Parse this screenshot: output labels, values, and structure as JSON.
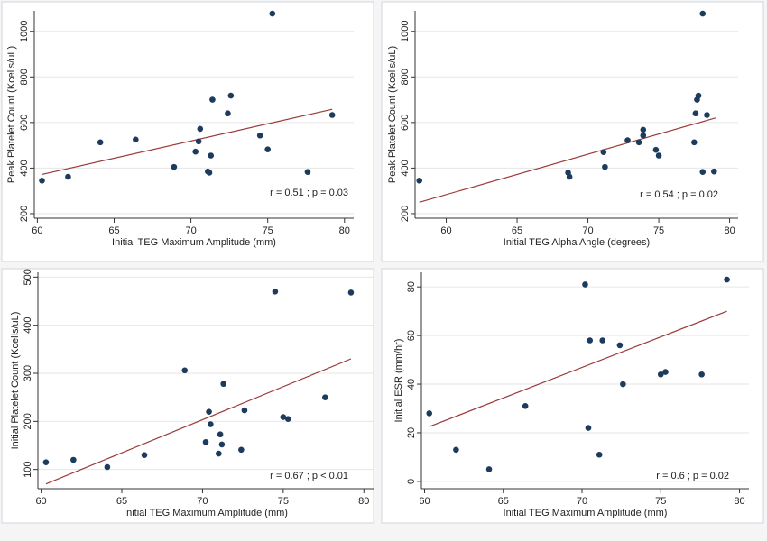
{
  "chart_data": [
    {
      "type": "scatter",
      "xlabel": "Initial TEG Maximum Amplitude (mm)",
      "ylabel": "Peak Platelet Count (Kcells/uL)",
      "xlim": [
        59.8,
        80.6
      ],
      "ylim": [
        180,
        1090
      ],
      "xticks": [
        60,
        65,
        70,
        75,
        80
      ],
      "yticks": [
        200,
        400,
        600,
        800,
        1000
      ],
      "annotation": "r = 0.51 ; p = 0.03",
      "fit": [
        [
          60.3,
          372
        ],
        [
          79.2,
          658
        ]
      ],
      "points": [
        [
          60.3,
          345
        ],
        [
          62.0,
          362
        ],
        [
          64.1,
          513
        ],
        [
          66.4,
          525
        ],
        [
          68.9,
          405
        ],
        [
          70.3,
          472
        ],
        [
          70.5,
          517
        ],
        [
          70.6,
          572
        ],
        [
          71.1,
          385
        ],
        [
          71.2,
          380
        ],
        [
          71.3,
          455
        ],
        [
          71.4,
          700
        ],
        [
          72.4,
          640
        ],
        [
          72.6,
          718
        ],
        [
          74.5,
          543
        ],
        [
          75.0,
          482
        ],
        [
          75.3,
          1078
        ],
        [
          77.6,
          383
        ],
        [
          79.2,
          633
        ]
      ]
    },
    {
      "type": "scatter",
      "xlabel": "Initial TEG Alpha Angle (degrees)",
      "ylabel": "Peak Platelet Count (Kcells/uL)",
      "xlim": [
        57.8,
        80.6
      ],
      "ylim": [
        180,
        1090
      ],
      "xticks": [
        60,
        65,
        70,
        75,
        80
      ],
      "yticks": [
        200,
        400,
        600,
        800,
        1000
      ],
      "annotation": "r = 0.54 ; p = 0.02",
      "fit": [
        [
          58.1,
          250
        ],
        [
          79.0,
          620
        ]
      ],
      "points": [
        [
          58.1,
          345
        ],
        [
          68.6,
          380
        ],
        [
          68.7,
          362
        ],
        [
          71.1,
          470
        ],
        [
          71.2,
          405
        ],
        [
          72.8,
          522
        ],
        [
          73.6,
          513
        ],
        [
          73.9,
          568
        ],
        [
          73.9,
          543
        ],
        [
          74.8,
          480
        ],
        [
          75.0,
          455
        ],
        [
          77.5,
          513
        ],
        [
          77.6,
          640
        ],
        [
          77.7,
          700
        ],
        [
          77.8,
          718
        ],
        [
          78.1,
          1078
        ],
        [
          78.1,
          383
        ],
        [
          78.4,
          633
        ],
        [
          78.9,
          385
        ]
      ]
    },
    {
      "type": "scatter",
      "xlabel": "Initial TEG Maximum Amplitude (mm)",
      "ylabel": "Initial Platelet Count (Kcells/uL)",
      "xlim": [
        59.8,
        80.6
      ],
      "ylim": [
        60,
        510
      ],
      "xticks": [
        60,
        65,
        70,
        75,
        80
      ],
      "yticks": [
        100,
        200,
        300,
        400,
        500
      ],
      "annotation": "r = 0.67 ; p < 0.01",
      "fit": [
        [
          60.3,
          70
        ],
        [
          79.2,
          330
        ]
      ],
      "points": [
        [
          60.3,
          115
        ],
        [
          62.0,
          120
        ],
        [
          64.1,
          105
        ],
        [
          66.4,
          130
        ],
        [
          68.9,
          306
        ],
        [
          70.2,
          157
        ],
        [
          70.4,
          220
        ],
        [
          70.5,
          194
        ],
        [
          71.0,
          133
        ],
        [
          71.1,
          173
        ],
        [
          71.2,
          152
        ],
        [
          71.3,
          278
        ],
        [
          72.4,
          141
        ],
        [
          72.6,
          223
        ],
        [
          74.5,
          470
        ],
        [
          75.0,
          209
        ],
        [
          75.3,
          205
        ],
        [
          77.6,
          250
        ],
        [
          79.2,
          468
        ]
      ]
    },
    {
      "type": "scatter",
      "xlabel": "Initial TEG Maximum Amplitude (mm)",
      "ylabel": "Initial ESR (mm/hr)",
      "xlim": [
        59.8,
        80.6
      ],
      "ylim": [
        -3,
        86
      ],
      "xticks": [
        60,
        65,
        70,
        75,
        80
      ],
      "yticks": [
        0,
        20,
        40,
        60,
        80
      ],
      "annotation": "r = 0.6 ; p = 0.02",
      "fit": [
        [
          60.3,
          22.5
        ],
        [
          79.2,
          70
        ]
      ],
      "points": [
        [
          60.3,
          28
        ],
        [
          62.0,
          13
        ],
        [
          64.1,
          5
        ],
        [
          66.4,
          31
        ],
        [
          70.2,
          81
        ],
        [
          70.4,
          22
        ],
        [
          70.5,
          58
        ],
        [
          71.1,
          11
        ],
        [
          71.3,
          58
        ],
        [
          72.4,
          56
        ],
        [
          72.6,
          40
        ],
        [
          75.0,
          44
        ],
        [
          75.3,
          45
        ],
        [
          77.6,
          44
        ],
        [
          79.2,
          83
        ]
      ]
    }
  ]
}
